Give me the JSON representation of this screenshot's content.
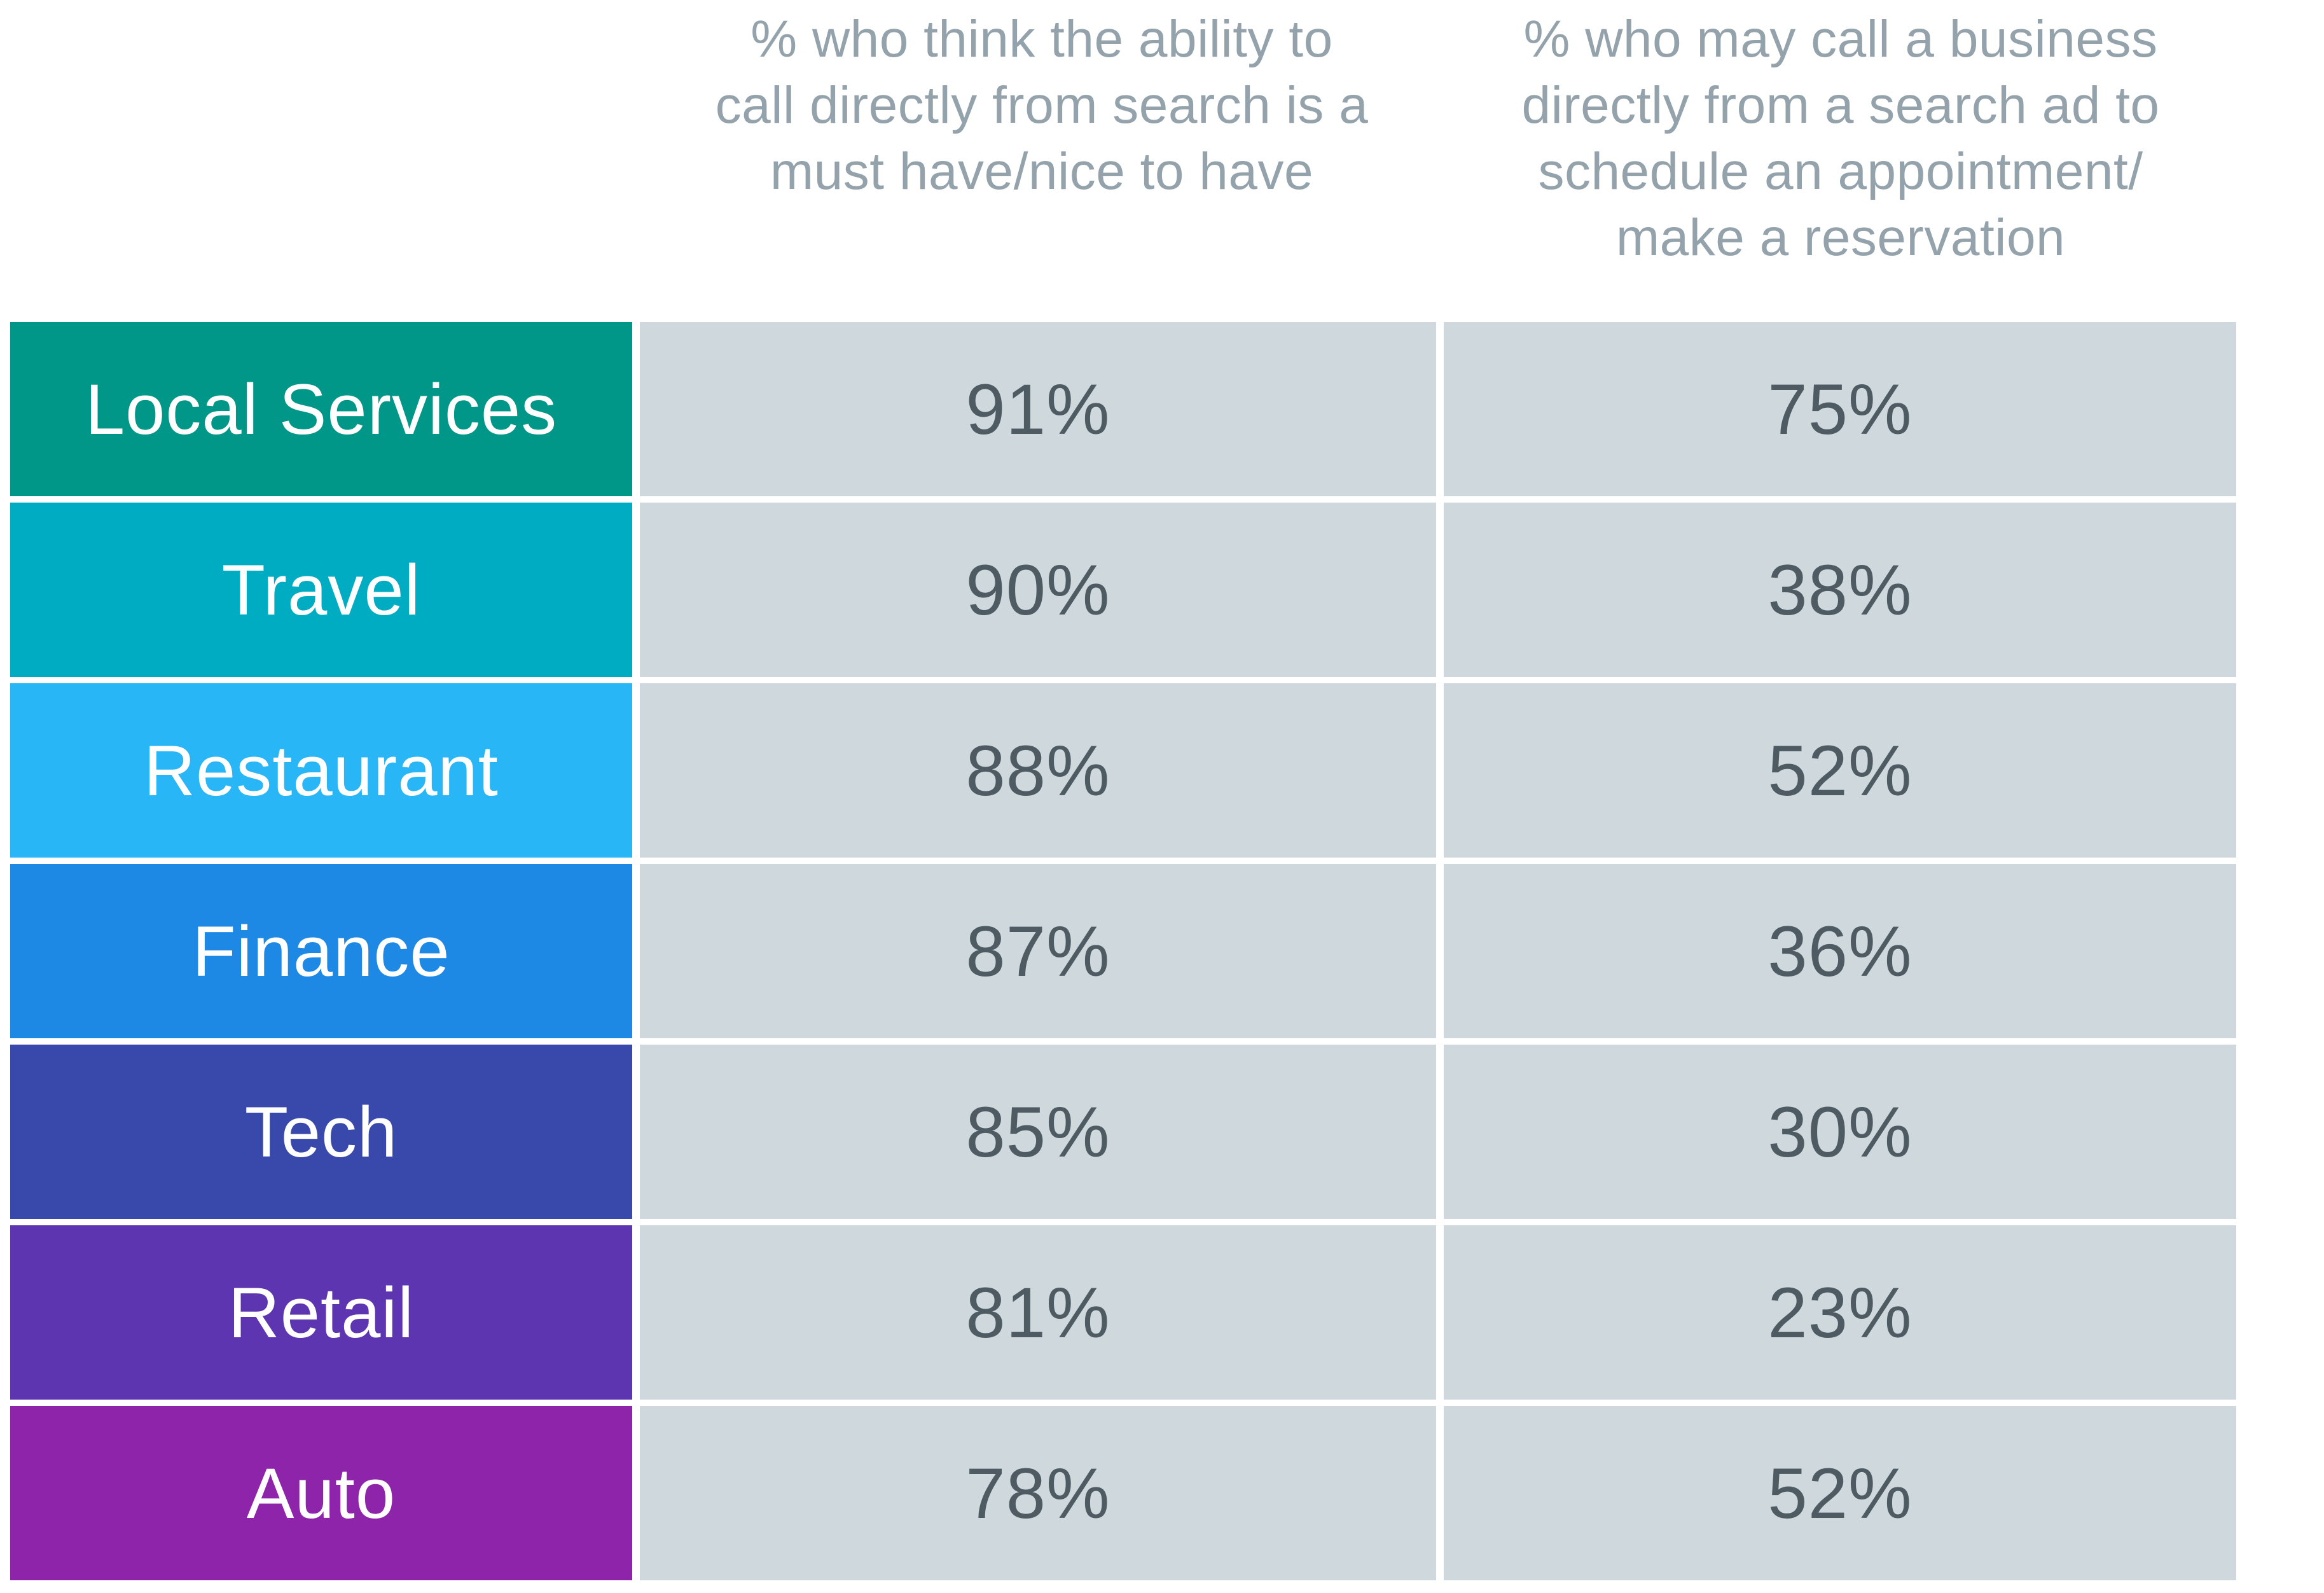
{
  "chart_data": {
    "type": "table",
    "columns": [
      "% who think the ability to call directly from search is a must have/nice to have",
      "% who may call a business directly from a search ad to schedule an appointment/ make a reservation"
    ],
    "header_lines": {
      "col1": [
        "% who think the ability to",
        "call directly from search is a",
        "must have/nice to have"
      ],
      "col2": [
        "% who may call a business",
        "directly from a search ad to",
        "schedule an appointment/",
        "make a reservation"
      ]
    },
    "rows": [
      {
        "category": "Local Services",
        "color": "#009688",
        "col1": "91%",
        "col2": "75%"
      },
      {
        "category": "Travel",
        "color": "#00acc1",
        "col1": "90%",
        "col2": "38%"
      },
      {
        "category": "Restaurant",
        "color": "#29b6f6",
        "col1": "88%",
        "col2": "52%"
      },
      {
        "category": "Finance",
        "color": "#1e88e5",
        "col1": "87%",
        "col2": "36%"
      },
      {
        "category": "Tech",
        "color": "#3949ab",
        "col1": "85%",
        "col2": "30%"
      },
      {
        "category": "Retail",
        "color": "#5e35b1",
        "col1": "81%",
        "col2": "23%"
      },
      {
        "category": "Auto",
        "color": "#8e24aa",
        "col1": "78%",
        "col2": "52%"
      }
    ]
  },
  "colors": {
    "cell_bg": "#cfd8dc",
    "cell_text": "#4e5b63",
    "header_text": "#94a3ab"
  }
}
